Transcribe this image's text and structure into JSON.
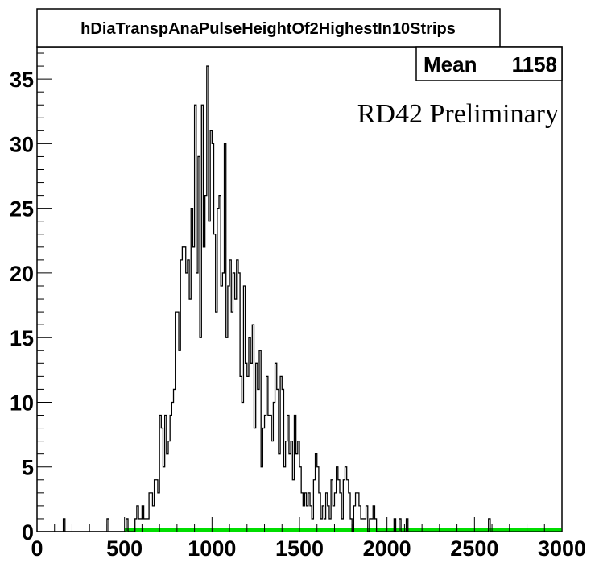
{
  "chart_data": {
    "type": "histogram",
    "title": "hDiaTranspAnaPulseHeightOf2HighestIn10Strips",
    "annotation": "RD42 Preliminary",
    "stats": {
      "label": "Mean",
      "value": "1158"
    },
    "xlim": [
      0,
      3000
    ],
    "ylim": [
      0,
      37.5
    ],
    "x_ticks": [
      "0",
      "500",
      "1000",
      "1500",
      "2000",
      "2500",
      "3000"
    ],
    "y_ticks": [
      "0",
      "5",
      "10",
      "15",
      "20",
      "25",
      "30",
      "35"
    ],
    "grid": false,
    "bin_width": 10,
    "threshold_line": {
      "from": 500,
      "to": 3000,
      "color": "#00dd00"
    },
    "line_color": "#000000",
    "counts": [
      0,
      0,
      0,
      0,
      0,
      0,
      0,
      0,
      0,
      0,
      0,
      0,
      0,
      0,
      0,
      1,
      0,
      0,
      0,
      0,
      0,
      0,
      0,
      0,
      0,
      0,
      0,
      0,
      0,
      0,
      0,
      0,
      0,
      0,
      0,
      0,
      0,
      0,
      0,
      0,
      1,
      0,
      0,
      0,
      0,
      0,
      0,
      0,
      0,
      0,
      0,
      1,
      0,
      0,
      0,
      0,
      1,
      2,
      1,
      1,
      2,
      1,
      1,
      1,
      3,
      3,
      2,
      4,
      4,
      3,
      9,
      8,
      5,
      9,
      6,
      7,
      9,
      10,
      11,
      17,
      17,
      14,
      21,
      22,
      22,
      20,
      21,
      18,
      25,
      22,
      33,
      20,
      29,
      15,
      33,
      22,
      26,
      36,
      24,
      31,
      30,
      23,
      17,
      25,
      26,
      19,
      20,
      30,
      15,
      19,
      21,
      17,
      20,
      18,
      21,
      20,
      12,
      10,
      19,
      13,
      12,
      15,
      13,
      16,
      8,
      13,
      11,
      14,
      5,
      8,
      9,
      12,
      9,
      9,
      7,
      10,
      13,
      11,
      6,
      12,
      11,
      5,
      7,
      9,
      6,
      7,
      4,
      9,
      6,
      7,
      5,
      3,
      2,
      3,
      2,
      3,
      2,
      1,
      4,
      6,
      5,
      3,
      1,
      2,
      1,
      3,
      2,
      1,
      4,
      2,
      3,
      5,
      4,
      3,
      1,
      4,
      5,
      4,
      3,
      1,
      0,
      2,
      3,
      3,
      2,
      1,
      1,
      1,
      2,
      0,
      1,
      1,
      2,
      1,
      0,
      0,
      0,
      0,
      0,
      0,
      0,
      0,
      0,
      0,
      1,
      0,
      0,
      1,
      0,
      0,
      0,
      1,
      0,
      0,
      0,
      0,
      0,
      0,
      0,
      0,
      0,
      0,
      0,
      0,
      0,
      0,
      0,
      0,
      0,
      0,
      0,
      0,
      0,
      0,
      0,
      0,
      0,
      0,
      0,
      0,
      0,
      0,
      0,
      0,
      0,
      0,
      0,
      0,
      0,
      0,
      0,
      0,
      0,
      0,
      0,
      0,
      0,
      0,
      1,
      0,
      0,
      0,
      0,
      0,
      0,
      0,
      0,
      0,
      0,
      0
    ]
  }
}
